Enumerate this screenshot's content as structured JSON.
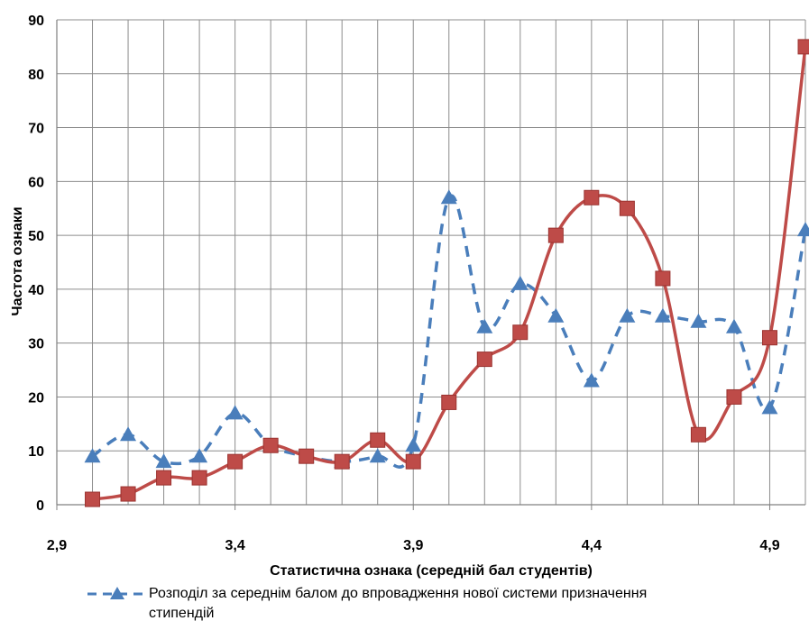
{
  "chart_data": {
    "type": "line",
    "xlabel": "Статистична ознака (середній бал студентів)",
    "ylabel": "Частота ознаки",
    "xlim": [
      2.9,
      5.0
    ],
    "ylim": [
      0,
      90
    ],
    "x_ticks": [
      "2,9",
      "3,4",
      "3,9",
      "4,4",
      "4,9"
    ],
    "y_ticks": [
      "0",
      "10",
      "20",
      "30",
      "40",
      "50",
      "60",
      "70",
      "80",
      "90"
    ],
    "grid": true,
    "legend_placement": "bottom",
    "series": [
      {
        "name": "Розподіл за середнім балом до впровадження нової системи призначення стипендій",
        "color": "#4a7ebb",
        "style": "dashed",
        "marker": "triangle",
        "x": [
          3.0,
          3.1,
          3.2,
          3.3,
          3.4,
          3.5,
          3.6,
          3.7,
          3.8,
          3.9,
          4.0,
          4.1,
          4.2,
          4.3,
          4.4,
          4.5,
          4.6,
          4.7,
          4.8,
          4.9,
          5.0
        ],
        "y": [
          9,
          13,
          8,
          9,
          17,
          11,
          9,
          8,
          9,
          11,
          57,
          33,
          41,
          35,
          23,
          35,
          35,
          34,
          33,
          18,
          51
        ]
      },
      {
        "name": "",
        "color": "#be4b48",
        "style": "solid",
        "marker": "square",
        "x": [
          3.0,
          3.1,
          3.2,
          3.3,
          3.4,
          3.5,
          3.6,
          3.7,
          3.8,
          3.9,
          4.0,
          4.1,
          4.2,
          4.3,
          4.4,
          4.5,
          4.6,
          4.7,
          4.8,
          4.9,
          5.0
        ],
        "y": [
          1,
          2,
          5,
          5,
          8,
          11,
          9,
          8,
          12,
          8,
          19,
          27,
          32,
          50,
          57,
          55,
          42,
          13,
          20,
          31,
          85
        ]
      }
    ]
  },
  "legend": {
    "line1": "Розподіл за середнім балом до впровадження нової системи призначення",
    "line2": "стипендій"
  }
}
